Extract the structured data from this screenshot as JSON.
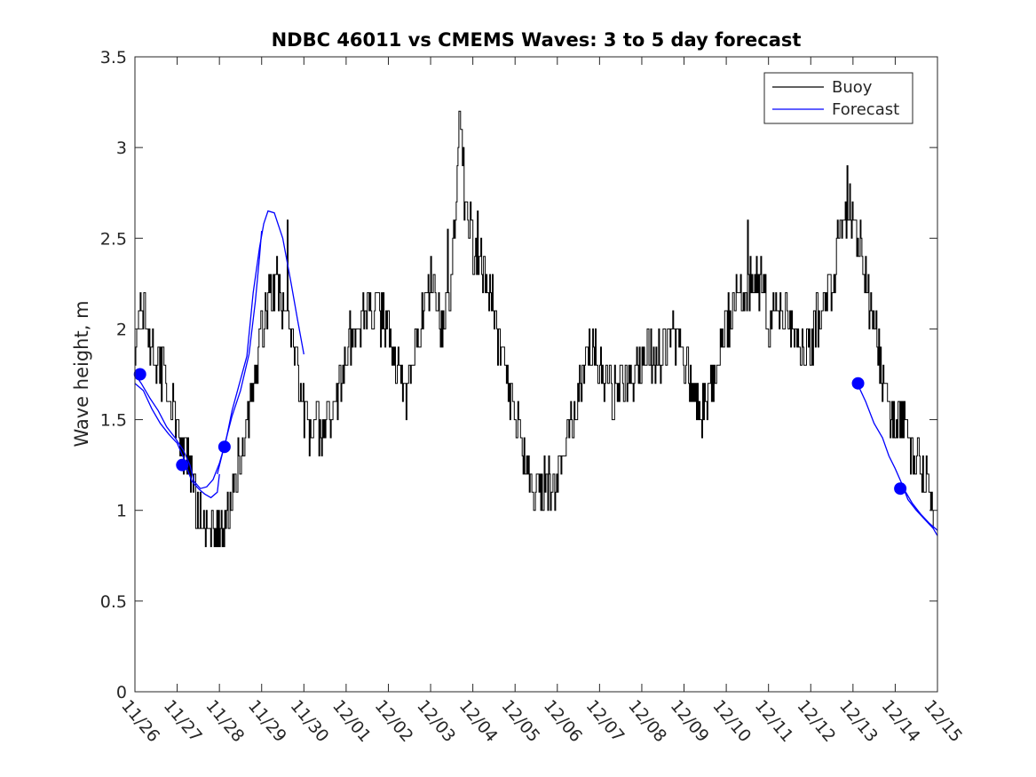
{
  "chart_data": {
    "type": "line",
    "title": "NDBC 46011 vs CMEMS Waves: 3 to 5 day forecast",
    "xlabel": "",
    "ylabel": "Wave height, m",
    "xlim": [
      0,
      19
    ],
    "ylim": [
      0,
      3.5
    ],
    "yticks": [
      0,
      0.5,
      1,
      1.5,
      2,
      2.5,
      3,
      3.5
    ],
    "ytick_labels": [
      "0",
      "0.5",
      "1",
      "1.5",
      "2",
      "2.5",
      "3",
      "3.5"
    ],
    "xticks": [
      0,
      1,
      2,
      3,
      4,
      5,
      6,
      7,
      8,
      9,
      10,
      11,
      12,
      13,
      14,
      15,
      16,
      17,
      18,
      19
    ],
    "xtick_labels": [
      "11/26",
      "11/27",
      "11/28",
      "11/29",
      "11/30",
      "12/01",
      "12/02",
      "12/03",
      "12/04",
      "12/05",
      "12/06",
      "12/07",
      "12/08",
      "12/09",
      "12/10",
      "12/11",
      "12/12",
      "12/13",
      "12/14",
      "12/15"
    ],
    "grid": false,
    "legend": {
      "location": "top-right",
      "entries": [
        "Buoy",
        "Forecast"
      ]
    },
    "colors": {
      "buoy": "#000000",
      "forecast": "#0000ff",
      "marker": "#0000ff",
      "axis": "#262626"
    },
    "series": [
      {
        "name": "Buoy",
        "anchors": [
          [
            0.0,
            1.85
          ],
          [
            0.15,
            2.1
          ],
          [
            0.35,
            1.9
          ],
          [
            0.6,
            1.8
          ],
          [
            0.8,
            1.65
          ],
          [
            1.0,
            1.45
          ],
          [
            1.2,
            1.3
          ],
          [
            1.4,
            1.05
          ],
          [
            1.6,
            0.95
          ],
          [
            1.8,
            0.9
          ],
          [
            2.0,
            0.85
          ],
          [
            2.1,
            0.9
          ],
          [
            2.3,
            1.05
          ],
          [
            2.5,
            1.3
          ],
          [
            2.7,
            1.55
          ],
          [
            2.9,
            1.85
          ],
          [
            3.05,
            2.05
          ],
          [
            3.2,
            2.2
          ],
          [
            3.4,
            2.25
          ],
          [
            3.6,
            2.05
          ],
          [
            3.75,
            1.95
          ],
          [
            3.9,
            1.65
          ],
          [
            4.1,
            1.45
          ],
          [
            4.3,
            1.45
          ],
          [
            4.5,
            1.45
          ],
          [
            4.7,
            1.55
          ],
          [
            4.9,
            1.75
          ],
          [
            5.1,
            1.95
          ],
          [
            5.3,
            2.05
          ],
          [
            5.5,
            2.1
          ],
          [
            5.7,
            2.1
          ],
          [
            5.9,
            2.05
          ],
          [
            6.05,
            2.0
          ],
          [
            6.2,
            1.8
          ],
          [
            6.4,
            1.65
          ],
          [
            6.55,
            1.75
          ],
          [
            6.7,
            1.95
          ],
          [
            6.85,
            2.2
          ],
          [
            7.0,
            2.3
          ],
          [
            7.15,
            2.05
          ],
          [
            7.3,
            2.0
          ],
          [
            7.5,
            2.35
          ],
          [
            7.6,
            2.7
          ],
          [
            7.68,
            3.2
          ],
          [
            7.8,
            2.75
          ],
          [
            8.0,
            2.45
          ],
          [
            8.2,
            2.35
          ],
          [
            8.4,
            2.2
          ],
          [
            8.6,
            1.95
          ],
          [
            8.8,
            1.75
          ],
          [
            9.0,
            1.5
          ],
          [
            9.2,
            1.35
          ],
          [
            9.4,
            1.2
          ],
          [
            9.6,
            1.15
          ],
          [
            9.8,
            1.12
          ],
          [
            9.95,
            1.15
          ],
          [
            10.1,
            1.25
          ],
          [
            10.3,
            1.45
          ],
          [
            10.5,
            1.65
          ],
          [
            10.7,
            1.8
          ],
          [
            10.9,
            1.9
          ],
          [
            11.1,
            1.75
          ],
          [
            11.3,
            1.65
          ],
          [
            11.5,
            1.7
          ],
          [
            11.7,
            1.75
          ],
          [
            11.9,
            1.8
          ],
          [
            12.1,
            1.85
          ],
          [
            12.3,
            1.8
          ],
          [
            12.5,
            1.9
          ],
          [
            12.7,
            1.95
          ],
          [
            12.9,
            1.85
          ],
          [
            13.1,
            1.75
          ],
          [
            13.25,
            1.6
          ],
          [
            13.4,
            1.55
          ],
          [
            13.6,
            1.65
          ],
          [
            13.8,
            1.8
          ],
          [
            14.0,
            2.0
          ],
          [
            14.2,
            2.15
          ],
          [
            14.4,
            2.2
          ],
          [
            14.6,
            2.3
          ],
          [
            14.8,
            2.25
          ],
          [
            15.0,
            2.05
          ],
          [
            15.2,
            2.1
          ],
          [
            15.4,
            2.15
          ],
          [
            15.6,
            2.0
          ],
          [
            15.8,
            1.9
          ],
          [
            16.0,
            1.95
          ],
          [
            16.2,
            2.05
          ],
          [
            16.4,
            2.2
          ],
          [
            16.6,
            2.4
          ],
          [
            16.8,
            2.55
          ],
          [
            16.9,
            2.7
          ],
          [
            17.05,
            2.55
          ],
          [
            17.2,
            2.4
          ],
          [
            17.4,
            2.15
          ],
          [
            17.55,
            2.0
          ],
          [
            17.7,
            1.75
          ],
          [
            17.85,
            1.55
          ],
          [
            18.0,
            1.5
          ],
          [
            18.2,
            1.45
          ],
          [
            18.4,
            1.3
          ],
          [
            18.6,
            1.25
          ],
          [
            18.8,
            1.1
          ],
          [
            18.9,
            0.9
          ]
        ],
        "spikes": [
          [
            0.12,
            2.2
          ],
          [
            2.0,
            0.8
          ],
          [
            2.1,
            0.8
          ],
          [
            3.6,
            2.6
          ],
          [
            7.4,
            2.55
          ],
          [
            7.68,
            3.2
          ],
          [
            7.75,
            2.9
          ],
          [
            8.1,
            2.65
          ],
          [
            9.45,
            1.0
          ],
          [
            14.5,
            2.6
          ],
          [
            16.85,
            2.9
          ],
          [
            17.0,
            2.6
          ],
          [
            18.9,
            0.9
          ]
        ]
      },
      {
        "name": "Forecast",
        "segments": [
          [
            [
              0.0,
              1.75
            ],
            [
              0.15,
              1.7
            ],
            [
              0.35,
              1.62
            ],
            [
              0.55,
              1.55
            ],
            [
              0.75,
              1.46
            ],
            [
              0.95,
              1.4
            ],
            [
              1.15,
              1.33
            ],
            [
              1.3,
              1.25
            ],
            [
              1.4,
              1.16
            ],
            [
              1.55,
              1.12
            ],
            [
              1.7,
              1.13
            ],
            [
              1.85,
              1.17
            ],
            [
              2.0,
              1.26
            ],
            [
              2.15,
              1.38
            ],
            [
              2.3,
              1.55
            ],
            [
              2.5,
              1.72
            ],
            [
              2.65,
              1.85
            ],
            [
              2.8,
              2.2
            ],
            [
              2.95,
              2.45
            ],
            [
              3.05,
              2.58
            ],
            [
              3.15,
              2.65
            ],
            [
              3.3,
              2.64
            ],
            [
              3.5,
              2.5
            ],
            [
              3.7,
              2.25
            ],
            [
              3.85,
              2.05
            ],
            [
              4.0,
              1.86
            ]
          ],
          [
            [
              0.0,
              1.7
            ],
            [
              0.2,
              1.66
            ],
            [
              0.4,
              1.56
            ],
            [
              0.6,
              1.48
            ],
            [
              0.8,
              1.42
            ],
            [
              1.0,
              1.37
            ],
            [
              1.15,
              1.29
            ],
            [
              1.25,
              1.22
            ],
            [
              1.35,
              1.16
            ],
            [
              1.5,
              1.12
            ],
            [
              1.65,
              1.09
            ],
            [
              1.8,
              1.07
            ],
            [
              1.95,
              1.1
            ],
            [
              2.0,
              1.2
            ]
          ],
          [
            [
              1.95,
              1.2
            ],
            [
              2.1,
              1.34
            ],
            [
              2.3,
              1.52
            ],
            [
              2.5,
              1.66
            ],
            [
              2.7,
              1.86
            ],
            [
              2.85,
              2.15
            ],
            [
              2.95,
              2.4
            ],
            [
              3.0,
              2.54
            ]
          ],
          [
            [
              17.1,
              1.7
            ],
            [
              17.3,
              1.6
            ],
            [
              17.5,
              1.48
            ],
            [
              17.7,
              1.4
            ],
            [
              17.85,
              1.3
            ],
            [
              18.0,
              1.23
            ],
            [
              18.15,
              1.15
            ],
            [
              18.3,
              1.06
            ],
            [
              18.5,
              1.0
            ],
            [
              18.7,
              0.95
            ],
            [
              18.9,
              0.9
            ],
            [
              19.0,
              0.86
            ]
          ],
          [
            [
              18.2,
              1.12
            ],
            [
              18.4,
              1.04
            ],
            [
              18.6,
              0.98
            ],
            [
              18.8,
              0.93
            ],
            [
              19.0,
              0.89
            ]
          ]
        ]
      },
      {
        "name": "Forecast points",
        "points": [
          [
            0.12,
            1.75
          ],
          [
            1.12,
            1.25
          ],
          [
            2.12,
            1.35
          ],
          [
            17.12,
            1.7
          ],
          [
            18.12,
            1.12
          ]
        ]
      }
    ]
  }
}
